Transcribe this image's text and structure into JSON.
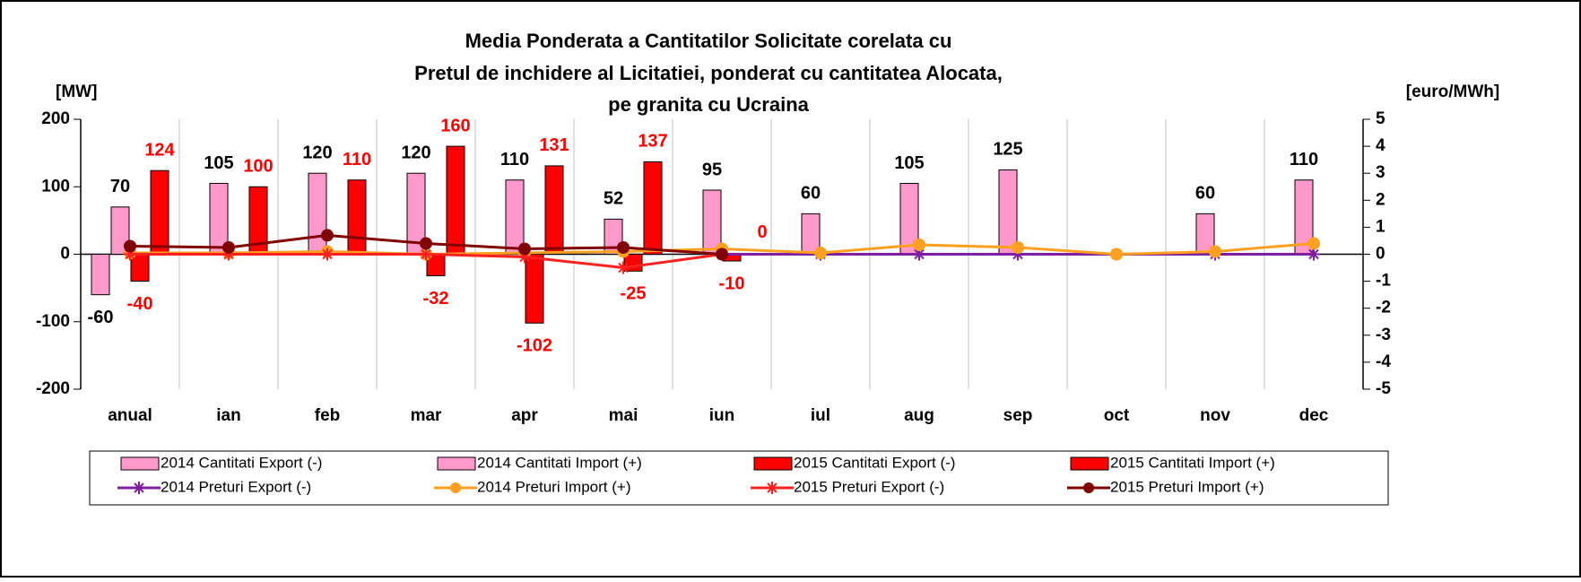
{
  "chart_data": {
    "type": "bar_line",
    "title_lines": [
      "Media Ponderata a Cantitatilor Solicitate corelata cu",
      "Pretul de inchidere al Licitatiei, ponderat cu cantitatea Alocata,",
      "pe granita cu Ucraina"
    ],
    "ylabel": "[MW]",
    "y2label": "[euro/MWh]",
    "categories": [
      "anual",
      "ian",
      "feb",
      "mar",
      "apr",
      "mai",
      "iun",
      "iul",
      "aug",
      "sep",
      "oct",
      "nov",
      "dec"
    ],
    "ylim": [
      -200,
      200
    ],
    "yticks": [
      -200,
      -100,
      0,
      100,
      200
    ],
    "y2lim": [
      -5,
      5
    ],
    "y2ticks": [
      -5,
      -4,
      -3,
      -2,
      -1,
      0,
      1,
      2,
      3,
      4,
      5
    ],
    "series": [
      {
        "name": "2014 Cantitati Export (-)",
        "kind": "bar",
        "color": "#ff99cc",
        "label_color": "#000000",
        "values": [
          -60,
          null,
          null,
          null,
          null,
          null,
          null,
          null,
          null,
          null,
          null,
          null,
          null
        ]
      },
      {
        "name": "2014 Cantitati Import (+)",
        "kind": "bar",
        "color": "#ff99cc",
        "label_color": "#000000",
        "values": [
          70,
          105,
          120,
          120,
          110,
          52,
          95,
          60,
          105,
          125,
          null,
          60,
          110
        ]
      },
      {
        "name": "2015 Cantitati Export (-)",
        "kind": "bar",
        "color": "#ff0000",
        "label_color": "#ff0000",
        "values": [
          -40,
          null,
          null,
          -32,
          -102,
          -25,
          -10,
          null,
          null,
          null,
          null,
          null,
          null
        ]
      },
      {
        "name": "2015 Cantitati Import (+)",
        "kind": "bar",
        "color": "#ff0000",
        "label_color": "#ff0000",
        "values": [
          124,
          100,
          110,
          160,
          131,
          137,
          0,
          null,
          null,
          null,
          null,
          null,
          null
        ]
      },
      {
        "name": "2014 Preturi Export (-)",
        "kind": "line",
        "axis": "y2",
        "marker": "star",
        "color": "#7f1fa0",
        "values": [
          null,
          null,
          null,
          null,
          null,
          null,
          0,
          0,
          0,
          0,
          0,
          0,
          0
        ]
      },
      {
        "name": "2014 Preturi Import (+)",
        "kind": "line",
        "axis": "y2",
        "marker": "circle",
        "color": "#ffa020",
        "values": [
          0.05,
          0.05,
          0.1,
          0,
          0.05,
          0.1,
          0.2,
          0.05,
          0.35,
          0.25,
          0,
          0.1,
          0.4
        ]
      },
      {
        "name": "2015 Preturi Export (-)",
        "kind": "line",
        "axis": "y2",
        "marker": "star",
        "color": "#ff2020",
        "values": [
          0,
          0,
          0,
          0,
          -0.1,
          -0.5,
          0,
          null,
          null,
          null,
          null,
          null,
          null
        ]
      },
      {
        "name": "2015 Preturi Import (+)",
        "kind": "line",
        "axis": "y2",
        "marker": "circle",
        "color": "#800000",
        "values": [
          0.3,
          0.25,
          0.7,
          0.4,
          0.2,
          0.25,
          0,
          null,
          null,
          null,
          null,
          null,
          null
        ]
      }
    ]
  }
}
